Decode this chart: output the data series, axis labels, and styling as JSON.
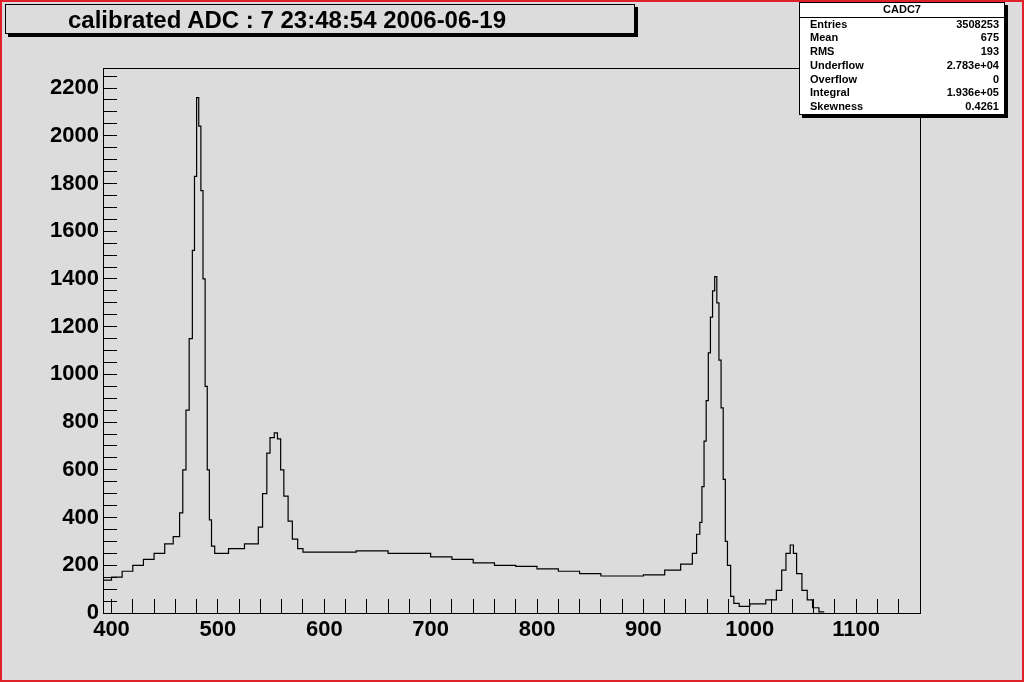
{
  "chart_data": {
    "type": "histogram",
    "title": "calibrated ADC :  7  23:48:54  2006-06-19",
    "bins": [
      392,
      400,
      410,
      420,
      430,
      440,
      450,
      458,
      464,
      467,
      470,
      473,
      476,
      478,
      480,
      482,
      484,
      486,
      488,
      490,
      492,
      494,
      497,
      510,
      525,
      538,
      542,
      546,
      549,
      553,
      556,
      559,
      562,
      566,
      570,
      575,
      580,
      600,
      630,
      660,
      700,
      720,
      740,
      760,
      780,
      800,
      820,
      840,
      860,
      880,
      900,
      920,
      935,
      946,
      950,
      953,
      955,
      957,
      959,
      961,
      963,
      965,
      967,
      969,
      971,
      973,
      975,
      977,
      979,
      982,
      985,
      990,
      1000,
      1015,
      1025,
      1030,
      1034,
      1038,
      1041,
      1044,
      1049,
      1054,
      1059,
      1065,
      1070
    ],
    "values": [
      138,
      150,
      175,
      200,
      225,
      250,
      290,
      320,
      420,
      600,
      850,
      1150,
      1520,
      1830,
      2160,
      2040,
      1770,
      1400,
      950,
      600,
      390,
      280,
      250,
      270,
      290,
      360,
      500,
      670,
      735,
      755,
      730,
      600,
      490,
      385,
      310,
      270,
      255,
      255,
      260,
      250,
      235,
      225,
      210,
      200,
      195,
      185,
      175,
      165,
      155,
      155,
      160,
      180,
      205,
      250,
      330,
      380,
      530,
      720,
      890,
      1090,
      1240,
      1350,
      1410,
      1300,
      1060,
      860,
      560,
      300,
      200,
      70,
      40,
      28,
      38,
      55,
      95,
      180,
      250,
      285,
      250,
      165,
      95,
      55,
      22,
      5
    ],
    "color": "#000000",
    "xlim": [
      392,
      1160
    ],
    "xticks": [
      400,
      {
        "value": 420,
        "label": null
      },
      {
        "value": 440,
        "label": null
      },
      {
        "value": 460,
        "label": null
      },
      {
        "value": 480,
        "label": null
      },
      500,
      {
        "value": 520,
        "label": null
      },
      {
        "value": 540,
        "label": null
      },
      {
        "value": 560,
        "label": null
      },
      {
        "value": 580,
        "label": null
      },
      600,
      {
        "value": 620,
        "label": null
      },
      {
        "value": 640,
        "label": null
      },
      {
        "value": 660,
        "label": null
      },
      {
        "value": 680,
        "label": null
      },
      700,
      {
        "value": 720,
        "label": null
      },
      {
        "value": 740,
        "label": null
      },
      {
        "value": 760,
        "label": null
      },
      {
        "value": 780,
        "label": null
      },
      800,
      {
        "value": 820,
        "label": null
      },
      {
        "value": 840,
        "label": null
      },
      {
        "value": 860,
        "label": null
      },
      {
        "value": 880,
        "label": null
      },
      900,
      {
        "value": 920,
        "label": null
      },
      {
        "value": 940,
        "label": null
      },
      {
        "value": 960,
        "label": null
      },
      {
        "value": 980,
        "label": null
      },
      1000,
      {
        "value": 1020,
        "label": null
      },
      {
        "value": 1040,
        "label": null
      },
      {
        "value": 1060,
        "label": null
      },
      {
        "value": 1080,
        "label": null
      },
      1100,
      {
        "value": 1120,
        "label": null
      },
      {
        "value": 1140,
        "label": null
      },
      {
        "value": 1160,
        "label": null
      }
    ],
    "ylim": [
      0,
      2284
    ],
    "yticks": [
      0,
      {
        "value": 50,
        "label": null
      },
      {
        "value": 100,
        "label": null
      },
      {
        "value": 150,
        "label": null
      },
      200,
      {
        "value": 250,
        "label": null
      },
      {
        "value": 300,
        "label": null
      },
      {
        "value": 350,
        "label": null
      },
      400,
      {
        "value": 450,
        "label": null
      },
      {
        "value": 500,
        "label": null
      },
      {
        "value": 550,
        "label": null
      },
      600,
      {
        "value": 650,
        "label": null
      },
      {
        "value": 700,
        "label": null
      },
      {
        "value": 750,
        "label": null
      },
      800,
      {
        "value": 850,
        "label": null
      },
      {
        "value": 900,
        "label": null
      },
      {
        "value": 950,
        "label": null
      },
      1000,
      {
        "value": 1050,
        "label": null
      },
      {
        "value": 1100,
        "label": null
      },
      {
        "value": 1150,
        "label": null
      },
      1200,
      {
        "value": 1250,
        "label": null
      },
      {
        "value": 1300,
        "label": null
      },
      {
        "value": 1350,
        "label": null
      },
      1400,
      {
        "value": 1450,
        "label": null
      },
      {
        "value": 1500,
        "label": null
      },
      {
        "value": 1550,
        "label": null
      },
      1600,
      {
        "value": 1650,
        "label": null
      },
      {
        "value": 1700,
        "label": null
      },
      {
        "value": 1750,
        "label": null
      },
      1800,
      {
        "value": 1850,
        "label": null
      },
      {
        "value": 1900,
        "label": null
      },
      {
        "value": 1950,
        "label": null
      },
      2000,
      {
        "value": 2050,
        "label": null
      },
      {
        "value": 2100,
        "label": null
      },
      {
        "value": 2150,
        "label": null
      },
      2200,
      {
        "value": 2250,
        "label": null
      }
    ],
    "annotations": [
      "CADC7",
      "Entries",
      "3508253",
      "Mean",
      "675",
      "RMS",
      "193",
      "Underflow",
      "2.783e+04",
      "Overflow",
      "0",
      "Integral",
      "1.936e+05",
      "Skewness",
      "0.4261"
    ]
  }
}
